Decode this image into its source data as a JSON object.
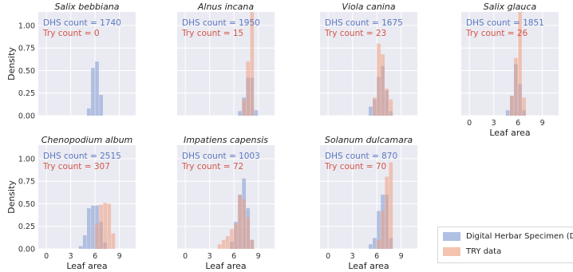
{
  "colors": {
    "dhs": "#7f99d2",
    "try": "#ef9f80",
    "plot_bg": "#eaeaf2",
    "grid": "#ffffff",
    "dhs_text": "#5b79c0",
    "try_text": "#d45548"
  },
  "legend": {
    "placement": "bottom-right",
    "items": [
      "Digital Herbar Specimen (DHS)",
      "TRY data"
    ]
  },
  "chart_data": [
    {
      "type": "bar",
      "title": "Salix bebbiana",
      "xlabel": "",
      "ylabel": "Density",
      "xlim": [
        -1,
        11
      ],
      "ylim": [
        0,
        1.15
      ],
      "grid": true,
      "xticks": [],
      "yticks": [
        "0.00",
        "0.25",
        "0.50",
        "0.75",
        "1.00"
      ],
      "dhs_count": "DHS count = 1740",
      "try_count": "Try count = 0",
      "dhs": {
        "edges": [
          5.0,
          5.5,
          6.0,
          6.5,
          7.0
        ],
        "density": [
          0.08,
          0.53,
          0.6,
          0.23
        ]
      },
      "try": {
        "edges": [],
        "density": []
      }
    },
    {
      "type": "bar",
      "title": "Alnus incana",
      "xlabel": "",
      "ylabel": "",
      "xlim": [
        -1,
        11
      ],
      "ylim": [
        0,
        1.15
      ],
      "grid": true,
      "xticks": [],
      "yticks": [],
      "dhs_count": "DHS count = 1950",
      "try_count": "Try count = 15",
      "dhs": {
        "edges": [
          6.5,
          7.0,
          7.5,
          8.0,
          8.5,
          9.0
        ],
        "density": [
          0.05,
          0.2,
          0.42,
          0.42,
          0.06
        ]
      },
      "try": {
        "edges": [
          7.0,
          7.5,
          8.0,
          8.5
        ],
        "density": [
          0.18,
          0.6,
          1.15
        ]
      }
    },
    {
      "type": "bar",
      "title": "Viola canina",
      "xlabel": "",
      "ylabel": "",
      "xlim": [
        -1,
        11
      ],
      "ylim": [
        0,
        1.15
      ],
      "grid": true,
      "xticks": [],
      "yticks": [],
      "dhs_count": "DHS count = 1675",
      "try_count": "Try count = 23",
      "dhs": {
        "edges": [
          5.0,
          5.5,
          6.0,
          6.5,
          7.0,
          7.5,
          8.0
        ],
        "density": [
          0.1,
          0.18,
          0.43,
          0.55,
          0.28,
          0.05
        ]
      },
      "try": {
        "edges": [
          5.5,
          6.0,
          6.5,
          7.0,
          7.5,
          8.0
        ],
        "density": [
          0.2,
          0.8,
          0.68,
          0.3,
          0.18
        ]
      }
    },
    {
      "type": "bar",
      "title": "Salix glauca",
      "xlabel": "Leaf area",
      "ylabel": "",
      "xlim": [
        -1,
        11
      ],
      "ylim": [
        0,
        1.15
      ],
      "grid": true,
      "xticks": [
        "0",
        "3",
        "6",
        "9"
      ],
      "yticks": [],
      "dhs_count": "DHS count = 1851",
      "try_count": "Try count = 26",
      "dhs": {
        "edges": [
          4.5,
          5.0,
          5.5,
          6.0,
          6.5,
          7.0
        ],
        "density": [
          0.06,
          0.22,
          0.57,
          0.35,
          0.06
        ]
      },
      "try": {
        "edges": [
          5.0,
          5.5,
          6.0,
          6.5,
          7.0
        ],
        "density": [
          0.22,
          0.64,
          1.15,
          0.2
        ]
      }
    },
    {
      "type": "bar",
      "title": "Chenopodium album",
      "xlabel": "Leaf area",
      "ylabel": "Density",
      "xlim": [
        -1,
        11
      ],
      "ylim": [
        0,
        1.15
      ],
      "grid": true,
      "xticks": [
        "0",
        "3",
        "6",
        "9"
      ],
      "yticks": [
        "0.00",
        "0.25",
        "0.50",
        "0.75",
        "1.00"
      ],
      "dhs_count": "DHS count = 2515",
      "try_count": "Try count = 307",
      "dhs": {
        "edges": [
          4.0,
          4.5,
          5.0,
          5.5,
          6.0,
          6.5,
          7.0,
          7.5
        ],
        "density": [
          0.03,
          0.15,
          0.45,
          0.48,
          0.48,
          0.3,
          0.07
        ]
      },
      "try": {
        "edges": [
          6.0,
          6.5,
          7.0,
          7.5,
          8.0,
          8.5
        ],
        "density": [
          0.28,
          0.49,
          0.51,
          0.5,
          0.17
        ]
      }
    },
    {
      "type": "bar",
      "title": "Impatiens capensis",
      "xlabel": "Leaf area",
      "ylabel": "",
      "xlim": [
        -1,
        11
      ],
      "ylim": [
        0,
        1.15
      ],
      "grid": true,
      "xticks": [
        "0",
        "3",
        "6",
        "9"
      ],
      "yticks": [],
      "dhs_count": "DHS count = 1003",
      "try_count": "Try count = 72",
      "dhs": {
        "edges": [
          5.5,
          6.0,
          6.5,
          7.0,
          7.5,
          8.0,
          8.5
        ],
        "density": [
          0.08,
          0.3,
          0.6,
          0.78,
          0.45,
          0.1
        ]
      },
      "try": {
        "edges": [
          4.0,
          4.5,
          5.0,
          5.5,
          6.0,
          6.5,
          7.0,
          7.5,
          8.0,
          8.5
        ],
        "density": [
          0.05,
          0.1,
          0.14,
          0.22,
          0.28,
          0.6,
          0.55,
          0.35,
          0.1
        ]
      }
    },
    {
      "type": "bar",
      "title": "Solanum dulcamara",
      "xlabel": "Leaf area",
      "ylabel": "",
      "xlim": [
        -1,
        11
      ],
      "ylim": [
        0,
        1.15
      ],
      "grid": true,
      "xticks": [
        "0",
        "3",
        "6",
        "9"
      ],
      "yticks": [],
      "dhs_count": "DHS count = 870",
      "try_count": "Try count = 70",
      "dhs": {
        "edges": [
          5.0,
          5.5,
          6.0,
          6.5,
          7.0,
          7.5,
          8.0
        ],
        "density": [
          0.05,
          0.12,
          0.42,
          0.6,
          0.6,
          0.12
        ]
      },
      "try": {
        "edges": [
          6.0,
          6.5,
          7.0,
          7.5,
          8.0
        ],
        "density": [
          0.1,
          0.42,
          0.8,
          0.96
        ]
      }
    }
  ]
}
